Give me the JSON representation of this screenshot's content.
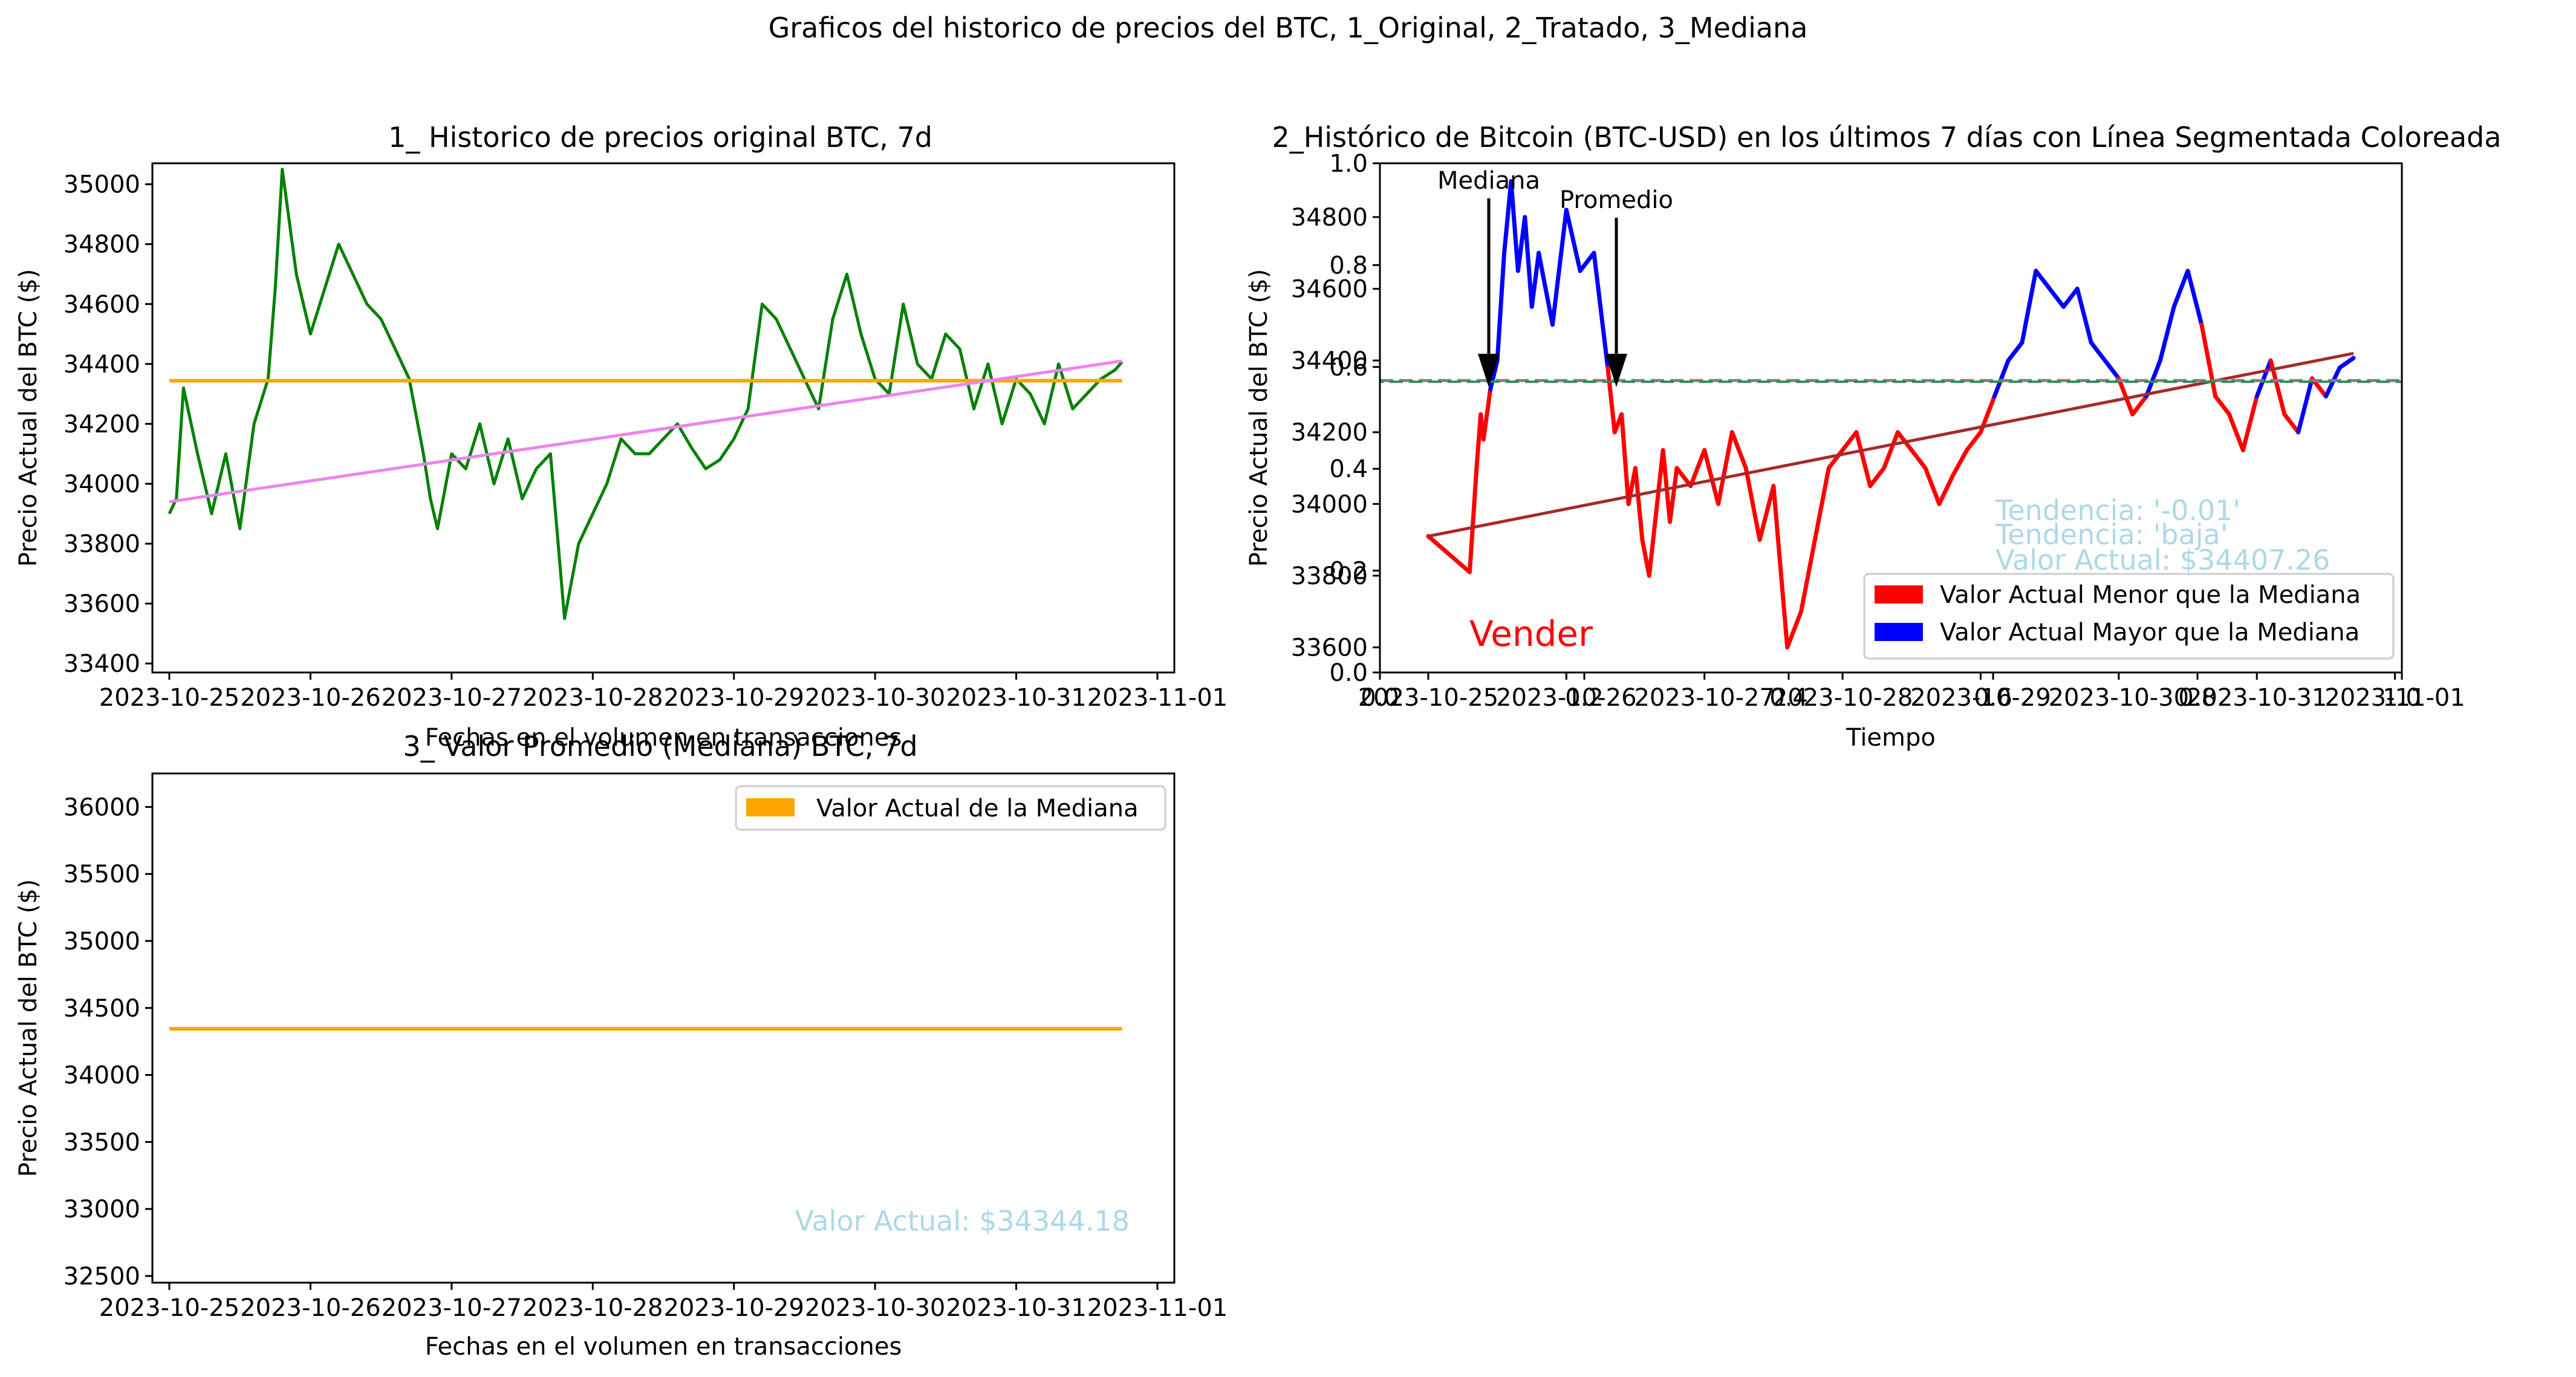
{
  "suptitle": "Graficos del historico de precios del BTC, 1_Original, 2_Tratado, 3_Mediana",
  "colors": {
    "price": "#008000",
    "median": "#FFA500",
    "trend1": "#EE82EE",
    "below": "#FF0000",
    "above": "#0000FF",
    "trend2": "#A52A2A",
    "info": "#ADD8E6",
    "dash_median": "#808080",
    "dash_mean": "#2E8B57"
  },
  "chart_data": [
    {
      "type": "line",
      "title": "1_ Historico de precios original BTC, 7d",
      "xlabel": "Fechas en el volumen en transacciones",
      "ylabel": "Precio Actual del BTC ($)",
      "xticks": [
        "2023-10-25",
        "2023-10-26",
        "2023-10-27",
        "2023-10-28",
        "2023-10-29",
        "2023-10-30",
        "2023-10-31",
        "2023-11-01"
      ],
      "yticks": [
        "33400",
        "33600",
        "33800",
        "34000",
        "34200",
        "34400",
        "34600",
        "34800",
        "35000"
      ],
      "xlim": [
        -0.12,
        7.12
      ],
      "ylim": [
        33370,
        35070
      ],
      "x_unit": "days since 2023-10-25",
      "series": [
        {
          "name": "Precio",
          "x": [
            0,
            0.05,
            0.1,
            0.2,
            0.3,
            0.4,
            0.5,
            0.6,
            0.7,
            0.75,
            0.8,
            0.9,
            1.0,
            1.1,
            1.2,
            1.3,
            1.4,
            1.5,
            1.6,
            1.7,
            1.8,
            1.85,
            1.9,
            2.0,
            2.1,
            2.2,
            2.3,
            2.4,
            2.5,
            2.6,
            2.7,
            2.8,
            2.9,
            3.0,
            3.1,
            3.2,
            3.3,
            3.4,
            3.5,
            3.6,
            3.7,
            3.8,
            3.9,
            4.0,
            4.1,
            4.2,
            4.3,
            4.4,
            4.5,
            4.6,
            4.7,
            4.8,
            4.9,
            5.0,
            5.1,
            5.2,
            5.3,
            5.4,
            5.5,
            5.6,
            5.7,
            5.8,
            5.9,
            6.0,
            6.1,
            6.2,
            6.3,
            6.4,
            6.5,
            6.6,
            6.7,
            6.75
          ],
          "values": [
            33900,
            33950,
            34320,
            34100,
            33900,
            34100,
            33850,
            34200,
            34350,
            34650,
            35050,
            34700,
            34500,
            34650,
            34800,
            34700,
            34600,
            34550,
            34450,
            34350,
            34100,
            33950,
            33850,
            34100,
            34050,
            34200,
            34000,
            34150,
            33950,
            34050,
            34100,
            33550,
            33800,
            33900,
            34000,
            34150,
            34100,
            34100,
            34150,
            34200,
            34120,
            34050,
            34080,
            34150,
            34250,
            34600,
            34550,
            34450,
            34350,
            34250,
            34550,
            34700,
            34500,
            34350,
            34300,
            34600,
            34400,
            34350,
            34500,
            34450,
            34250,
            34400,
            34200,
            34350,
            34300,
            34200,
            34400,
            34250,
            34300,
            34350,
            34380,
            34407
          ]
        },
        {
          "name": "Mediana",
          "x": [
            0,
            6.75
          ],
          "values": [
            34344.18,
            34344.18
          ]
        },
        {
          "name": "Tendencia",
          "x": [
            0,
            6.75
          ],
          "values": [
            33940,
            34410
          ]
        }
      ]
    },
    {
      "type": "line",
      "title": "2_Histórico de Bitcoin (BTC-USD) en los últimos 7 días con Línea Segmentada Coloreada",
      "xlabel": "Tiempo",
      "ylabel": "Precio Actual del BTC ($)",
      "xticks": [
        "2023-10-25",
        "2023-10-26",
        "2023-10-27",
        "2023-10-28",
        "2023-10-29",
        "2023-10-30",
        "2023-10-31",
        "2023-11-01"
      ],
      "yticks": [
        "33600",
        "33800",
        "34000",
        "34200",
        "34400",
        "34600",
        "34800"
      ],
      "secondary_xticks": [
        "0.0",
        "0.2",
        "0.4",
        "0.6",
        "0.8",
        "1.0"
      ],
      "secondary_yticks": [
        "0.0",
        "0.2",
        "0.4",
        "0.6",
        "0.8",
        "1.0"
      ],
      "xlim": [
        -0.35,
        7.05
      ],
      "ylim": [
        33530,
        34950
      ],
      "x_unit": "days since 2023-10-25",
      "median_value": 34344.18,
      "series": [
        {
          "name": "Precio",
          "x": [
            0,
            0.3,
            0.35,
            0.38,
            0.4,
            0.45,
            0.5,
            0.55,
            0.6,
            0.65,
            0.7,
            0.75,
            0.8,
            0.85,
            0.9,
            1.0,
            1.1,
            1.2,
            1.3,
            1.35,
            1.4,
            1.45,
            1.5,
            1.55,
            1.6,
            1.7,
            1.75,
            1.8,
            1.9,
            2.0,
            2.1,
            2.2,
            2.3,
            2.4,
            2.5,
            2.6,
            2.7,
            2.8,
            2.9,
            3.0,
            3.1,
            3.2,
            3.3,
            3.4,
            3.5,
            3.6,
            3.7,
            3.8,
            3.9,
            4.0,
            4.1,
            4.2,
            4.3,
            4.4,
            4.5,
            4.6,
            4.7,
            4.8,
            4.9,
            5.0,
            5.1,
            5.2,
            5.3,
            5.4,
            5.5,
            5.6,
            5.7,
            5.8,
            5.9,
            6.0,
            6.1,
            6.2,
            6.3,
            6.4,
            6.5,
            6.6,
            6.7
          ],
          "values": [
            33910,
            33810,
            34100,
            34250,
            34180,
            34320,
            34400,
            34700,
            34900,
            34650,
            34800,
            34550,
            34700,
            34600,
            34500,
            34820,
            34650,
            34700,
            34380,
            34200,
            34250,
            34000,
            34100,
            33900,
            33800,
            34150,
            33950,
            34100,
            34050,
            34150,
            34000,
            34200,
            34100,
            33900,
            34050,
            33600,
            33700,
            33900,
            34100,
            34150,
            34200,
            34050,
            34100,
            34200,
            34150,
            34100,
            34000,
            34080,
            34150,
            34200,
            34300,
            34400,
            34450,
            34650,
            34600,
            34550,
            34600,
            34450,
            34400,
            34350,
            34250,
            34300,
            34400,
            34550,
            34650,
            34500,
            34300,
            34250,
            34150,
            34300,
            34400,
            34250,
            34200,
            34350,
            34300,
            34380,
            34407
          ]
        },
        {
          "name": "Tendencia",
          "x": [
            0,
            6.7
          ],
          "values": [
            33910,
            34420
          ]
        }
      ],
      "legend": [
        "Valor Actual Menor que la Mediana",
        "Valor Actual Mayor que la Mediana"
      ],
      "legend_loc": "lower right",
      "annotations": {
        "mediana": "Mediana",
        "promedio": "Promedio",
        "signal": "Vender",
        "trend_value": "Tendencia: '-0.01'",
        "trend_label": "Tendencia: 'baja'",
        "current_value": "Valor Actual: $34407.26"
      }
    },
    {
      "type": "line",
      "title": "3_ Valor Promedio (Mediana) BTC, 7d",
      "xlabel": "Fechas en el volumen en transacciones",
      "ylabel": "Precio Actual del BTC ($)",
      "xticks": [
        "2023-10-25",
        "2023-10-26",
        "2023-10-27",
        "2023-10-28",
        "2023-10-29",
        "2023-10-30",
        "2023-10-31",
        "2023-11-01"
      ],
      "yticks": [
        "32500",
        "33000",
        "33500",
        "34000",
        "34500",
        "35000",
        "35500",
        "36000"
      ],
      "xlim": [
        -0.12,
        7.12
      ],
      "ylim": [
        32450,
        36250
      ],
      "x_unit": "days since 2023-10-25",
      "series": [
        {
          "name": "Valor Actual de la Mediana",
          "x": [
            0,
            6.75
          ],
          "values": [
            34344.18,
            34344.18
          ]
        }
      ],
      "legend": [
        "Valor Actual de la Mediana"
      ],
      "legend_loc": "upper right",
      "annotations": {
        "current_value": "Valor Actual: $34344.18"
      }
    }
  ]
}
